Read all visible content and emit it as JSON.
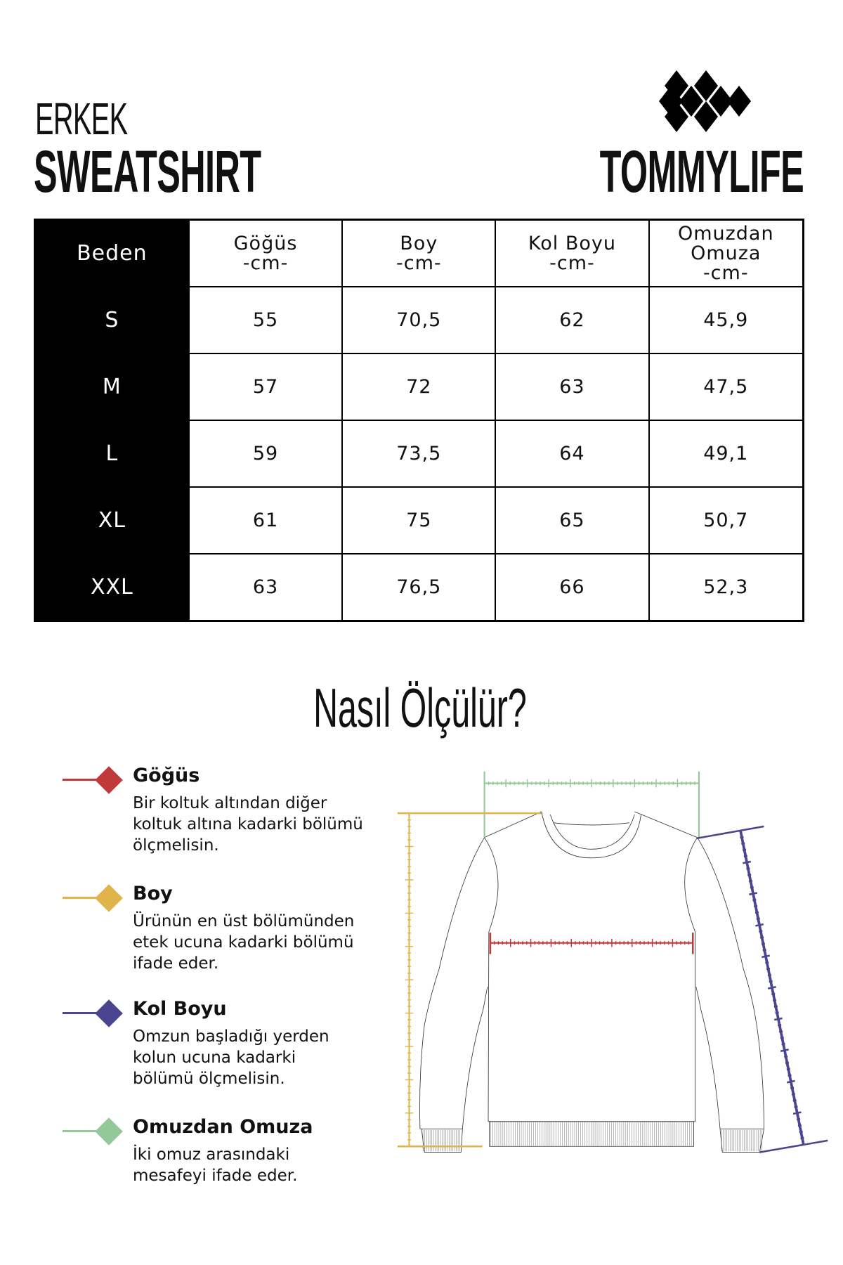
{
  "header": {
    "line1": "ERKEK",
    "line2": "SWEATSHIRT",
    "brand": "TOMMYLIFE"
  },
  "table": {
    "columns": [
      "Beden",
      "Göğüs\n-cm-",
      "Boy\n-cm-",
      "Kol Boyu\n-cm-",
      "Omuzdan\nOmuza\n-cm-"
    ],
    "rows": [
      [
        "S",
        "55",
        "70,5",
        "62",
        "45,9"
      ],
      [
        "M",
        "57",
        "72",
        "63",
        "47,5"
      ],
      [
        "L",
        "59",
        "73,5",
        "64",
        "49,1"
      ],
      [
        "XL",
        "61",
        "75",
        "65",
        "50,7"
      ],
      [
        "XXL",
        "63",
        "76,5",
        "66",
        "52,3"
      ]
    ]
  },
  "howto": {
    "title": "Nasıl Ölçülür?"
  },
  "legend": [
    {
      "title": "Göğüs",
      "desc": "Bir koltuk altından diğer\nkoltuk altına kadarki bölümü\nölçmelisin.",
      "color": "#c0393b"
    },
    {
      "title": "Boy",
      "desc": "Ürünün en üst bölümünden\netek ucuna kadarki bölümü\nifade eder.",
      "color": "#e0b44a"
    },
    {
      "title": "Kol Boyu",
      "desc": "Omzun başladığı yerden\nkolun ucuna kadarki\nbölümü ölçmelisin.",
      "color": "#4b4590"
    },
    {
      "title": "Omuzdan Omuza",
      "desc": "İki omuz arasındaki\nmesafeyi ifade eder.",
      "color": "#94c79a"
    }
  ]
}
